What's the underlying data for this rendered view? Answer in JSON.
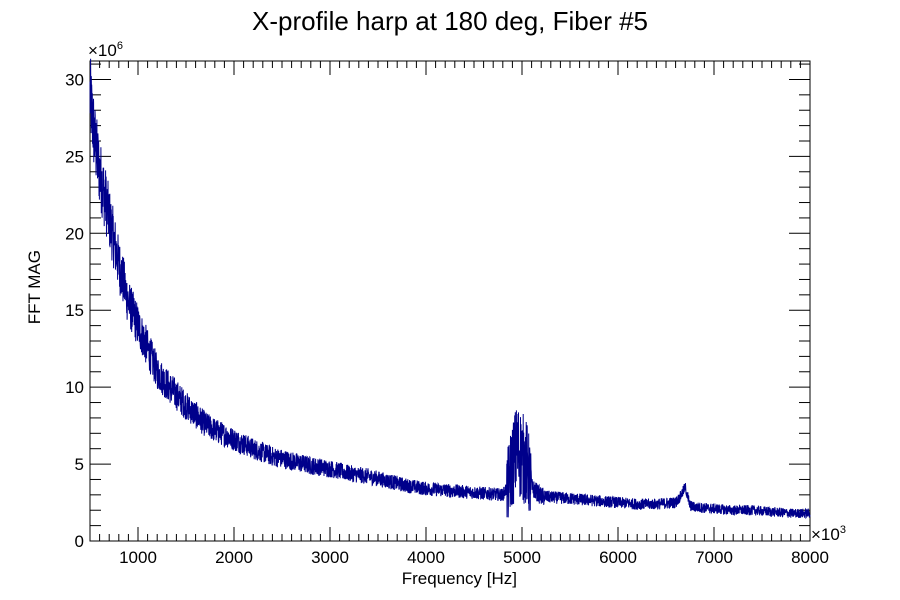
{
  "chart_data": {
    "type": "line",
    "title": "X-profile harp at 180 deg, Fiber #5",
    "xlabel": "Frequency [Hz]",
    "ylabel": "FFT MAG",
    "x_multiplier": "×10",
    "x_multiplier_exp": "3",
    "y_multiplier": "×10",
    "y_multiplier_exp": "6",
    "xlim": [
      500,
      8000
    ],
    "ylim": [
      0,
      31.2
    ],
    "x_ticks": [
      1000,
      2000,
      3000,
      4000,
      5000,
      6000,
      7000,
      8000
    ],
    "x_tick_labels": [
      "1000",
      "2000",
      "3000",
      "4000",
      "5000",
      "6000",
      "7000",
      "8000"
    ],
    "y_ticks": [
      0,
      5,
      10,
      15,
      20,
      25,
      30
    ],
    "y_tick_labels": [
      "0",
      "5",
      "10",
      "15",
      "20",
      "25",
      "30"
    ],
    "grid": false,
    "line_color": "#00008b",
    "series": [
      {
        "x": [
          500,
          550,
          600,
          650,
          700,
          750,
          800,
          850,
          900,
          1000,
          1100,
          1200,
          1300,
          1400,
          1500,
          1600,
          1700,
          1800,
          2000,
          2200,
          2400,
          2600,
          2800,
          3000,
          3200,
          3400,
          3600,
          3800,
          4000,
          4200,
          4400,
          4600,
          4800,
          4850,
          4900,
          4950,
          5000,
          5050,
          5100,
          5200,
          5400,
          5600,
          5800,
          6000,
          6200,
          6400,
          6600,
          6650,
          6700,
          6750,
          6800,
          7000,
          7200,
          7400,
          7600,
          7800,
          8000
        ],
        "y": [
          29.0,
          26.0,
          24.0,
          22.5,
          21.0,
          19.5,
          18.0,
          16.8,
          15.5,
          14.0,
          12.5,
          11.0,
          10.2,
          9.5,
          8.8,
          8.2,
          7.6,
          7.2,
          6.6,
          6.0,
          5.5,
          5.2,
          4.9,
          4.7,
          4.4,
          4.2,
          3.9,
          3.6,
          3.4,
          3.3,
          3.2,
          3.1,
          3.0,
          3.5,
          5.0,
          6.0,
          5.5,
          5.0,
          3.5,
          2.9,
          2.8,
          2.7,
          2.6,
          2.5,
          2.4,
          2.4,
          2.5,
          2.9,
          3.5,
          2.3,
          2.2,
          2.1,
          2.0,
          2.0,
          1.9,
          1.8,
          1.8
        ]
      }
    ]
  }
}
